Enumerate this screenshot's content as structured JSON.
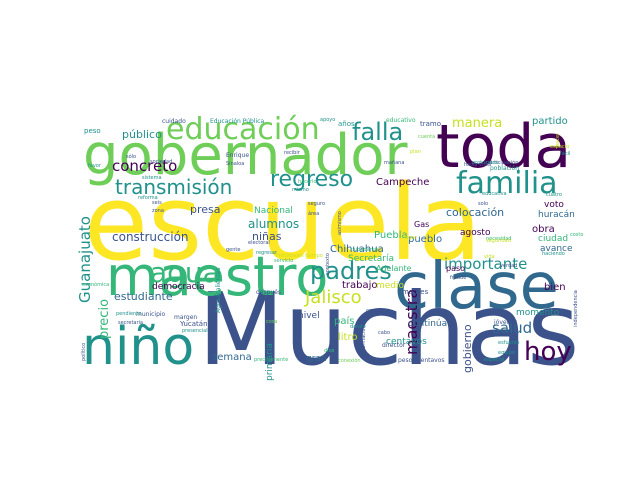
{
  "palette": {
    "purple": "#440154",
    "indigo": "#3b528b",
    "blue": "#31688e",
    "teal": "#21918c",
    "green": "#35b779",
    "lime": "#6ece58",
    "yellow": "#c8e020",
    "bright": "#fde725"
  },
  "words": [
    {
      "text": "escuela",
      "color": "bright"
    },
    {
      "text": "Muchas",
      "color": "indigo"
    },
    {
      "text": "gobernador",
      "color": "lime"
    },
    {
      "text": "toda",
      "color": "purple"
    },
    {
      "text": "clase",
      "color": "blue"
    },
    {
      "text": "maestro",
      "color": "green"
    },
    {
      "text": "niño",
      "color": "teal"
    },
    {
      "text": "educación",
      "color": "lime"
    },
    {
      "text": "familia",
      "color": "teal"
    },
    {
      "text": "agua",
      "color": "green"
    },
    {
      "text": "padres",
      "color": "teal"
    },
    {
      "text": "transmisión",
      "color": "teal"
    },
    {
      "text": "regreso",
      "color": "teal"
    },
    {
      "text": "falla",
      "color": "teal"
    },
    {
      "text": "hoy",
      "color": "purple"
    },
    {
      "text": "Jalisco",
      "color": "yellow"
    },
    {
      "text": "Guanajuato",
      "color": "teal"
    },
    {
      "text": "maestra",
      "color": "purple"
    },
    {
      "text": "concreto",
      "color": "purple"
    },
    {
      "text": "manera",
      "color": "yellow"
    },
    {
      "text": "importante",
      "color": "teal"
    },
    {
      "text": "salud",
      "color": "blue"
    },
    {
      "text": "precio",
      "color": "green"
    },
    {
      "text": "construcción",
      "color": "indigo"
    },
    {
      "text": "alumnos",
      "color": "teal"
    },
    {
      "text": "presa",
      "color": "indigo"
    },
    {
      "text": "niñas",
      "color": "indigo"
    },
    {
      "text": "estudiante",
      "color": "blue"
    },
    {
      "text": "gobierno",
      "color": "indigo"
    },
    {
      "text": "trabajo",
      "color": "purple"
    },
    {
      "text": "partido",
      "color": "teal"
    },
    {
      "text": "colocación",
      "color": "blue"
    },
    {
      "text": "Puebla",
      "color": "green"
    },
    {
      "text": "pueblo",
      "color": "blue"
    },
    {
      "text": "obra",
      "color": "purple"
    },
    {
      "text": "bien",
      "color": "purple"
    },
    {
      "text": "público",
      "color": "teal"
    },
    {
      "text": "semana",
      "color": "blue"
    },
    {
      "text": "litro",
      "color": "yellow"
    },
    {
      "text": "país",
      "color": "green"
    },
    {
      "text": "democracia",
      "color": "purple"
    },
    {
      "text": "Chihuahua",
      "color": "blue"
    },
    {
      "text": "Campeche",
      "color": "purple"
    },
    {
      "text": "Nacional",
      "color": "green"
    },
    {
      "text": "agosto",
      "color": "purple"
    },
    {
      "text": "ciudad",
      "color": "green"
    },
    {
      "text": "voto",
      "color": "purple"
    },
    {
      "text": "huracán",
      "color": "blue"
    },
    {
      "text": "avance",
      "color": "blue"
    },
    {
      "text": "momento",
      "color": "teal"
    },
    {
      "text": "medio",
      "color": "yellow"
    },
    {
      "text": "Secretaría",
      "color": "green"
    },
    {
      "text": "continúa",
      "color": "blue"
    },
    {
      "text": "centavos",
      "color": "teal"
    },
    {
      "text": "Adelante",
      "color": "green"
    },
    {
      "text": "paso",
      "color": "purple"
    },
    {
      "text": "primaria",
      "color": "teal"
    },
    {
      "text": "nivel",
      "color": "indigo"
    },
    {
      "text": "gran",
      "color": "blue"
    },
    {
      "text": "Gas",
      "color": "purple"
    },
    {
      "text": "Educación Pública",
      "color": "teal"
    },
    {
      "text": "peso",
      "color": "teal"
    },
    {
      "text": "años",
      "color": "teal"
    },
    {
      "text": "tramo",
      "color": "indigo"
    },
    {
      "text": "educativo",
      "color": "green"
    },
    {
      "text": "cuidado",
      "color": "indigo"
    },
    {
      "text": "apoyo",
      "color": "teal"
    },
    {
      "text": "madres",
      "color": "indigo"
    },
    {
      "text": "pesos centavos",
      "color": "indigo"
    },
    {
      "text": "Yucatán",
      "color": "indigo"
    },
    {
      "text": "municipio",
      "color": "indigo"
    },
    {
      "text": "director",
      "color": "indigo"
    },
    {
      "text": "jóvenes",
      "color": "indigo"
    },
    {
      "text": "esfuerzo",
      "color": "teal"
    },
    {
      "text": "especial",
      "color": "teal"
    },
    {
      "text": "económica",
      "color": "green"
    },
    {
      "text": "margen",
      "color": "indigo"
    },
    {
      "text": "secretaria",
      "color": "indigo"
    },
    {
      "text": "presencial",
      "color": "teal"
    },
    {
      "text": "reforma",
      "color": "teal"
    },
    {
      "text": "zona",
      "color": "indigo"
    },
    {
      "text": "sistema",
      "color": "teal"
    },
    {
      "text": "Enrique",
      "color": "indigo"
    },
    {
      "text": "Sinaloa",
      "color": "indigo"
    },
    {
      "text": "Aguascalientes",
      "color": "teal"
    },
    {
      "text": "electoral",
      "color": "indigo"
    },
    {
      "text": "gente",
      "color": "indigo"
    },
    {
      "text": "recibir",
      "color": "indigo"
    },
    {
      "text": "mismo",
      "color": "teal"
    },
    {
      "text": "área",
      "color": "indigo"
    },
    {
      "text": "población",
      "color": "teal"
    },
    {
      "text": "participación",
      "color": "indigo"
    },
    {
      "text": "cuatro",
      "color": "teal"
    },
    {
      "text": "educativa",
      "color": "teal"
    },
    {
      "text": "seguro",
      "color": "indigo"
    },
    {
      "text": "vida",
      "color": "yellow"
    },
    {
      "text": "fraude",
      "color": "indigo"
    },
    {
      "text": "haciendo",
      "color": "teal"
    },
    {
      "text": "verdad",
      "color": "indigo"
    },
    {
      "text": "fácil",
      "color": "teal"
    },
    {
      "text": "solo",
      "color": "indigo"
    },
    {
      "text": "protocolos",
      "color": "teal"
    },
    {
      "text": "sólo",
      "color": "indigo"
    },
    {
      "text": "seis",
      "color": "indigo"
    },
    {
      "text": "pendiente",
      "color": "teal"
    },
    {
      "text": "político",
      "color": "indigo"
    },
    {
      "text": "río",
      "color": "indigo"
    },
    {
      "text": "cabo",
      "color": "indigo"
    },
    {
      "text": "dando",
      "color": "teal"
    },
    {
      "text": "GENERAL",
      "color": "indigo"
    },
    {
      "text": "información",
      "color": "indigo"
    },
    {
      "text": "después",
      "color": "indigo"
    },
    {
      "text": "gusto",
      "color": "indigo"
    },
    {
      "text": "contexto",
      "color": "indigo"
    },
    {
      "text": "equipo",
      "color": "teal"
    },
    {
      "text": "independencia",
      "color": "indigo"
    },
    {
      "text": "mañana",
      "color": "indigo"
    },
    {
      "text": "servicio",
      "color": "green"
    },
    {
      "text": "regresar",
      "color": "teal"
    },
    {
      "text": "Felicidades tiempo",
      "color": "yellow"
    },
    {
      "text": "precisamente",
      "color": "green"
    },
    {
      "text": "conexión",
      "color": "lime"
    },
    {
      "text": "dice",
      "color": "green"
    },
    {
      "text": "favor",
      "color": "teal"
    },
    {
      "text": "hacia vista",
      "color": "indigo"
    },
    {
      "text": "cosa",
      "color": "lime"
    },
    {
      "text": "sociedad",
      "color": "indigo"
    },
    {
      "text": "asimismo",
      "color": "indigo"
    },
    {
      "text": "lugar",
      "color": "yellow"
    },
    {
      "text": "necesidad",
      "color": "green"
    },
    {
      "text": "seguridad",
      "color": "yellow"
    },
    {
      "text": "ciudadanos",
      "color": "green"
    },
    {
      "text": "plan",
      "color": "yellow"
    },
    {
      "text": "cuenta",
      "color": "lime"
    },
    {
      "text": "costo",
      "color": "green"
    },
    {
      "text": "hacer",
      "color": "yellow"
    },
    {
      "text": "hacerlo",
      "color": "green"
    },
    {
      "text": "espacio",
      "color": "yellow"
    }
  ]
}
